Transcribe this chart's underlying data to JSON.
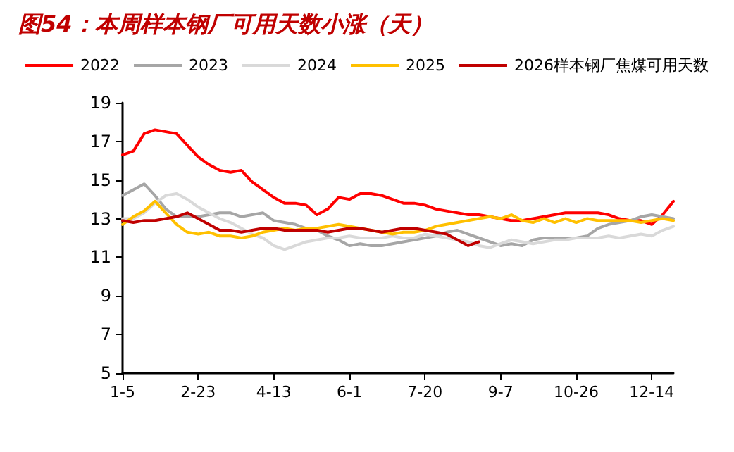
{
  "chart_data": {
    "type": "line",
    "title": "图54：本周样本钢厂可用天数小涨（天）",
    "categories": [
      "1-5",
      null,
      null,
      null,
      null,
      null,
      null,
      "2-23",
      null,
      null,
      null,
      null,
      null,
      null,
      "4-13",
      null,
      null,
      null,
      null,
      null,
      null,
      "6-1",
      null,
      null,
      null,
      null,
      null,
      null,
      "7-20",
      null,
      null,
      null,
      null,
      null,
      null,
      "9-7",
      null,
      null,
      null,
      null,
      null,
      null,
      "10-26",
      null,
      null,
      null,
      null,
      null,
      null,
      "12-14",
      null,
      null
    ],
    "series": [
      {
        "name": "2022",
        "color": "#ff0000",
        "values": [
          16.3,
          16.5,
          17.4,
          17.6,
          17.5,
          17.4,
          16.8,
          16.2,
          15.8,
          15.5,
          15.4,
          15.5,
          14.9,
          14.5,
          14.1,
          13.8,
          13.8,
          13.7,
          13.2,
          13.5,
          14.1,
          14.0,
          14.3,
          14.3,
          14.2,
          14.0,
          13.8,
          13.8,
          13.7,
          13.5,
          13.4,
          13.3,
          13.2,
          13.2,
          13.1,
          13.0,
          12.9,
          12.9,
          13.0,
          13.1,
          13.2,
          13.3,
          13.3,
          13.3,
          13.3,
          13.2,
          13.0,
          12.9,
          12.9,
          12.7,
          13.2,
          13.9
        ]
      },
      {
        "name": "2023",
        "color": "#a6a6a6",
        "values": [
          14.2,
          14.5,
          14.8,
          14.2,
          13.5,
          13.1,
          13.1,
          13.1,
          13.2,
          13.3,
          13.3,
          13.1,
          13.2,
          13.3,
          12.9,
          12.8,
          12.7,
          12.5,
          12.4,
          12.1,
          11.9,
          11.6,
          11.7,
          11.6,
          11.6,
          11.7,
          11.8,
          11.9,
          12.0,
          12.1,
          12.3,
          12.4,
          12.2,
          12.0,
          11.8,
          11.6,
          11.7,
          11.6,
          11.9,
          12.0,
          12.0,
          12.0,
          12.0,
          12.1,
          12.5,
          12.7,
          12.8,
          12.9,
          13.1,
          13.2,
          13.1,
          13.0
        ]
      },
      {
        "name": "2024",
        "color": "#d9d9d9",
        "values": [
          13.0,
          13.0,
          13.3,
          13.8,
          14.2,
          14.3,
          14.0,
          13.6,
          13.3,
          13.0,
          12.8,
          12.5,
          12.2,
          12.0,
          11.6,
          11.4,
          11.6,
          11.8,
          11.9,
          12.0,
          12.0,
          12.1,
          12.0,
          12.0,
          12.0,
          12.1,
          12.0,
          12.0,
          12.2,
          12.1,
          12.0,
          11.9,
          11.8,
          11.6,
          11.5,
          11.7,
          11.9,
          11.8,
          11.7,
          11.8,
          11.9,
          11.9,
          12.0,
          12.0,
          12.0,
          12.1,
          12.0,
          12.1,
          12.2,
          12.1,
          12.4,
          12.6
        ]
      },
      {
        "name": "2025",
        "color": "#ffc000",
        "values": [
          12.7,
          13.1,
          13.4,
          13.9,
          13.3,
          12.7,
          12.3,
          12.2,
          12.3,
          12.1,
          12.1,
          12.0,
          12.1,
          12.3,
          12.4,
          12.5,
          12.4,
          12.5,
          12.5,
          12.6,
          12.7,
          12.6,
          12.5,
          12.4,
          12.3,
          12.2,
          12.3,
          12.3,
          12.4,
          12.6,
          12.7,
          12.8,
          12.9,
          13.0,
          13.1,
          13.0,
          13.2,
          12.9,
          12.8,
          13.0,
          12.8,
          13.0,
          12.8,
          13.0,
          12.9,
          12.9,
          12.9,
          12.9,
          12.8,
          12.9,
          13.0,
          12.9
        ]
      },
      {
        "name": "2026样本钢厂焦煤可用天数",
        "color": "#c00000",
        "values": [
          12.9,
          12.8,
          12.9,
          12.9,
          13.0,
          13.1,
          13.3,
          13.0,
          12.7,
          12.4,
          12.4,
          12.3,
          12.4,
          12.5,
          12.5,
          12.4,
          12.4,
          12.4,
          12.4,
          12.3,
          12.4,
          12.5,
          12.5,
          12.4,
          12.3,
          12.4,
          12.5,
          12.5,
          12.4,
          12.3,
          12.2,
          11.9,
          11.6,
          11.8,
          null,
          null,
          null,
          null,
          null,
          null,
          null,
          null,
          null,
          null,
          null,
          null,
          null,
          null,
          null,
          null,
          null,
          null
        ]
      }
    ],
    "ylim": [
      5,
      19
    ],
    "yticks": [
      5,
      7,
      9,
      11,
      13,
      15,
      17,
      19
    ],
    "grid": false,
    "legend": "top",
    "marker": "none",
    "line_style": "solid"
  }
}
